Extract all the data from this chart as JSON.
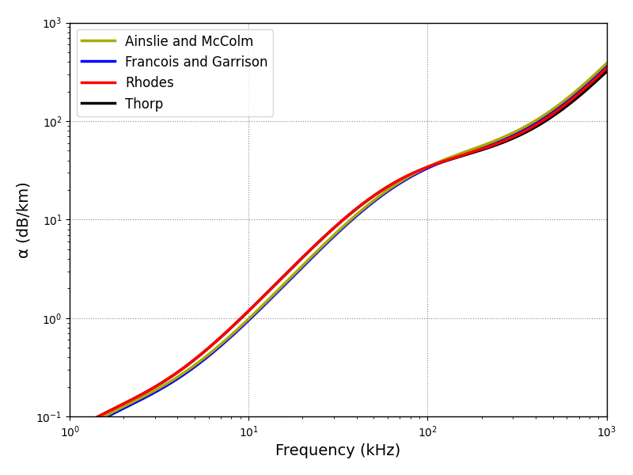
{
  "xlabel": "Frequency (kHz)",
  "ylabel": "α (dB/km)",
  "xlim": [
    1,
    1000
  ],
  "ylim": [
    0.1,
    1000
  ],
  "legend_labels": [
    "Ainslie and McColm",
    "Francois and Garrison",
    "Rhodes",
    "Thorp"
  ],
  "legend_colors": [
    "#aaaa00",
    "#0000ff",
    "#ff0000",
    "#000000"
  ],
  "linewidth": 2.5,
  "figsize": [
    8.0,
    6.0
  ],
  "dpi": 100,
  "background_color": "#ffffff",
  "xlabel_fontsize": 14,
  "ylabel_fontsize": 14,
  "legend_fontsize": 12,
  "freq_points": 1000
}
